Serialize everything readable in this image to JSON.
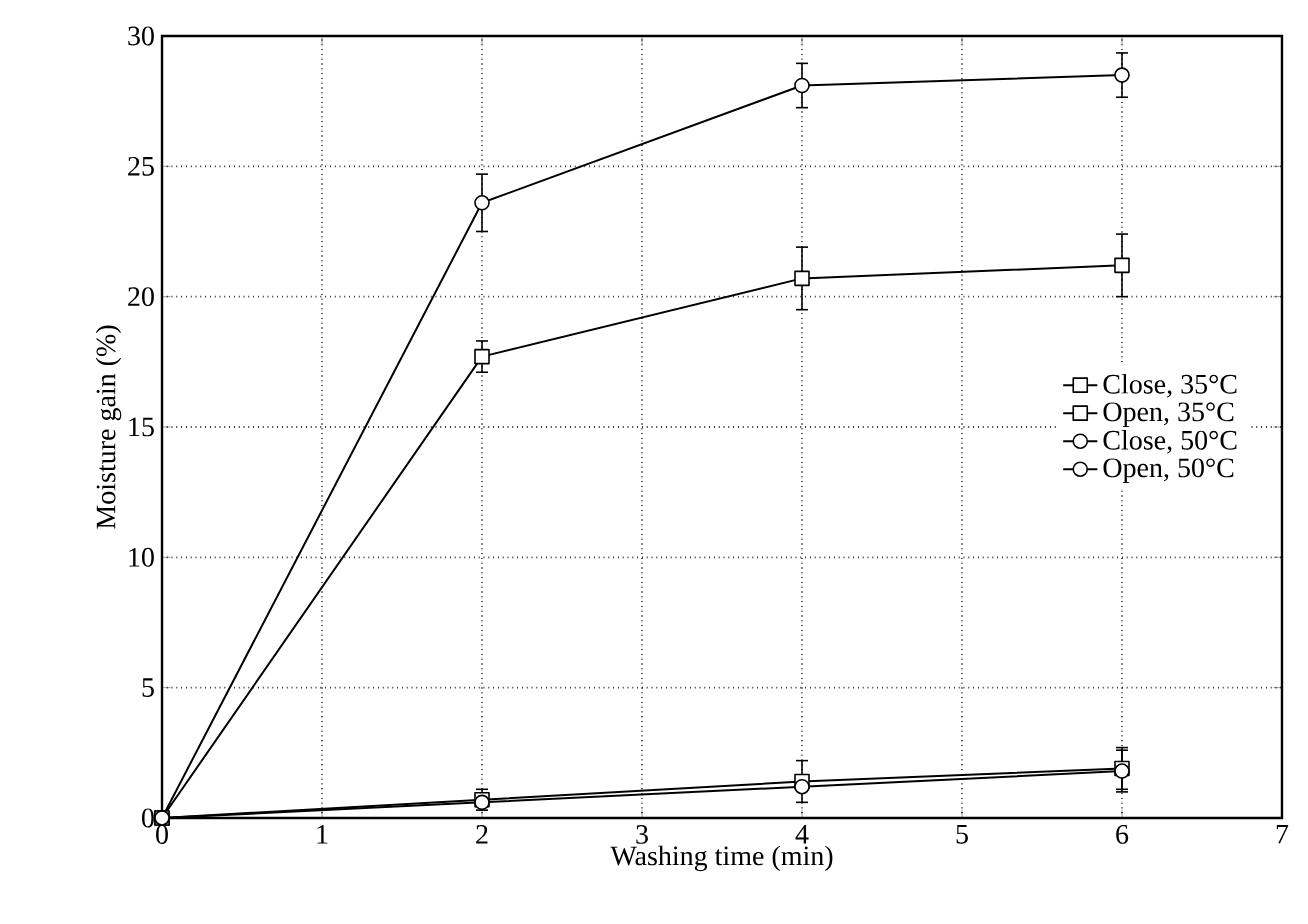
{
  "chart_data": {
    "type": "line",
    "xlabel": "Washing time (min)",
    "ylabel": "Moisture gain (%)",
    "x": [
      0,
      2,
      4,
      6
    ],
    "xlim": [
      0,
      7
    ],
    "xticks": [
      0,
      1,
      2,
      3,
      4,
      5,
      6,
      7
    ],
    "ylim": [
      0,
      30
    ],
    "yticks": [
      0,
      5,
      10,
      15,
      20,
      25,
      30
    ],
    "grid": true,
    "legend": "right",
    "line_style": "solid",
    "series": [
      {
        "name": "Close, 35°C",
        "color": "#000000",
        "marker": "square",
        "values": [
          0,
          0.7,
          1.4,
          1.9
        ],
        "errors": [
          null,
          0.4,
          0.8,
          0.8
        ]
      },
      {
        "name": "Open, 35°C",
        "color": "#000000",
        "marker": "square",
        "values": [
          0,
          17.7,
          20.7,
          21.2
        ],
        "errors": [
          null,
          0.6,
          1.2,
          1.2
        ]
      },
      {
        "name": "Close, 50°C",
        "color": "#000000",
        "marker": "circle",
        "values": [
          0,
          0.6,
          1.2,
          1.8
        ],
        "errors": [
          null,
          null,
          null,
          0.8
        ]
      },
      {
        "name": "Open, 50°C",
        "color": "#000000",
        "marker": "circle",
        "values": [
          0,
          23.6,
          28.1,
          28.5
        ],
        "errors": [
          null,
          1.1,
          0.85,
          0.85
        ]
      }
    ]
  }
}
